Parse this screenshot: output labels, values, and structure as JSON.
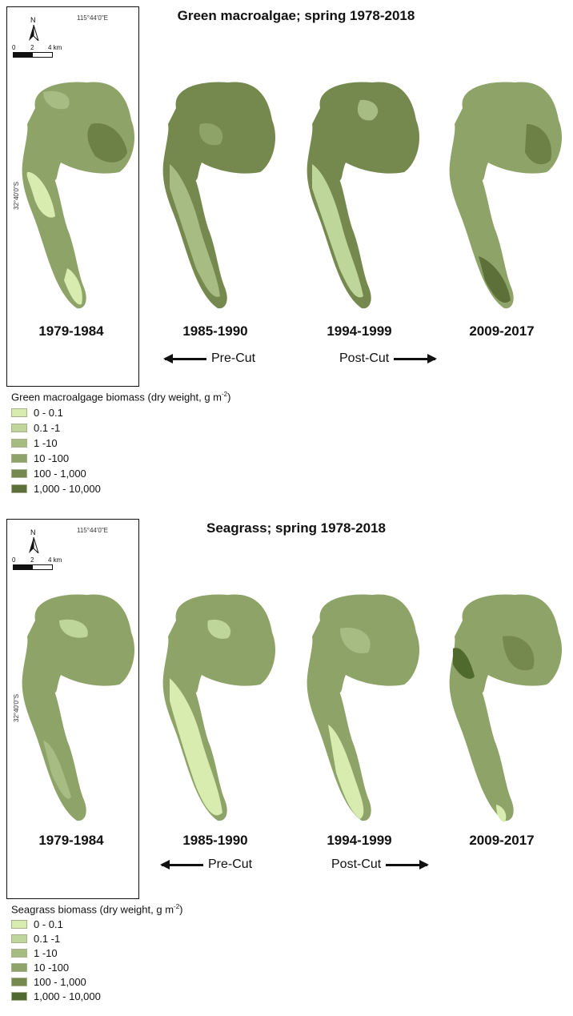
{
  "panels": [
    {
      "title": "Green macroalgae; spring 1978-2018",
      "coord_top": "115°44'0\"E",
      "coord_side": "32°40'0\"S",
      "north": "N",
      "scale": {
        "zero": "0",
        "mid": "2",
        "end": "4 km"
      },
      "periods": [
        "1979-1984",
        "1985-1990",
        "1994-1999",
        "2009-2017"
      ],
      "pre_cut": "Pre-Cut",
      "post_cut": "Post-Cut",
      "legend": {
        "title": "Green macroalgage biomass (dry weight, g m",
        "title_exp": "-2",
        "title_end": ")",
        "items": [
          {
            "label": "0 - 0.1",
            "color": "#d8ecb0"
          },
          {
            "label": "0.1 -1",
            "color": "#bed69a"
          },
          {
            "label": "1 -10",
            "color": "#a7bc82"
          },
          {
            "label": "10 -100",
            "color": "#8ea368"
          },
          {
            "label": "100 - 1,000",
            "color": "#75894f"
          },
          {
            "label": "1,000 - 10,000",
            "color": "#5d7039"
          }
        ]
      }
    },
    {
      "title": "Seagrass; spring 1978-2018",
      "coord_top": "115°44'0\"E",
      "coord_side": "32°40'0\"S",
      "north": "N",
      "scale": {
        "zero": "0",
        "mid": "2",
        "end": "4 km"
      },
      "periods": [
        "1979-1984",
        "1985-1990",
        "1994-1999",
        "2009-2017"
      ],
      "pre_cut": "Pre-Cut",
      "post_cut": "Post-Cut",
      "legend": {
        "title": "Seagrass biomass (dry weight, g m",
        "title_exp": "-2",
        "title_end": ")",
        "items": [
          {
            "label": "0 - 0.1",
            "color": "#d8ecb0"
          },
          {
            "label": "0.1 -1",
            "color": "#bed69a"
          },
          {
            "label": "1 -10",
            "color": "#a7bc82"
          },
          {
            "label": "10 -100",
            "color": "#8ea368"
          },
          {
            "label": "100 - 1,000",
            "color": "#75894f"
          },
          {
            "label": "1,000 - 10,000",
            "color": "#4f6a2c"
          }
        ]
      }
    }
  ]
}
